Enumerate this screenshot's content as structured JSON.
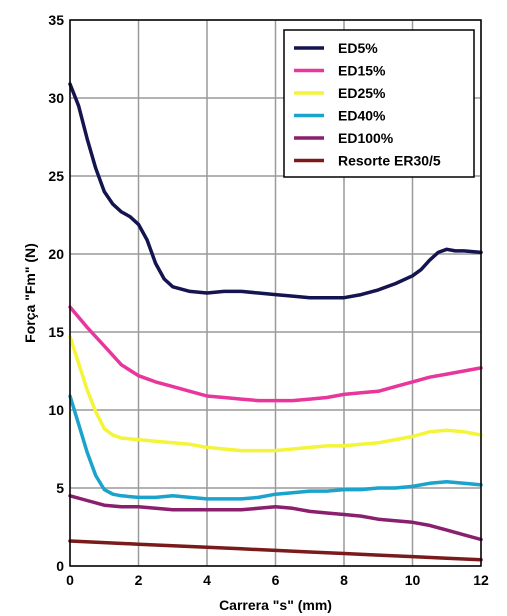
{
  "chart_data": {
    "type": "line",
    "xlabel": "Carrera \"s\" (mm)",
    "ylabel": "Força \"Fm\" (N)",
    "xlim": [
      0,
      12
    ],
    "ylim": [
      0,
      35
    ],
    "x_ticks": [
      "0",
      "2",
      "4",
      "6",
      "8",
      "10",
      "12"
    ],
    "y_ticks": [
      "0",
      "5",
      "10",
      "15",
      "20",
      "25",
      "30",
      "35"
    ],
    "grid": true,
    "legend_position": "top-right",
    "series": [
      {
        "name": "ED5%",
        "color": "#141450",
        "x": [
          0,
          0.25,
          0.5,
          0.75,
          1,
          1.25,
          1.5,
          1.75,
          2,
          2.25,
          2.5,
          2.75,
          3,
          3.5,
          4,
          4.5,
          5,
          5.5,
          6,
          6.5,
          7,
          7.5,
          8,
          8.5,
          9,
          9.5,
          10,
          10.25,
          10.5,
          10.75,
          11,
          11.25,
          11.5,
          12
        ],
        "y": [
          30.9,
          29.5,
          27.4,
          25.5,
          24.0,
          23.2,
          22.7,
          22.4,
          21.9,
          20.9,
          19.4,
          18.4,
          17.9,
          17.6,
          17.5,
          17.6,
          17.6,
          17.5,
          17.4,
          17.3,
          17.2,
          17.2,
          17.2,
          17.4,
          17.7,
          18.1,
          18.6,
          19.0,
          19.6,
          20.1,
          20.3,
          20.2,
          20.2,
          20.1
        ]
      },
      {
        "name": "ED15%",
        "color": "#e8369c",
        "x": [
          0,
          0.5,
          1,
          1.5,
          2,
          2.5,
          3,
          3.5,
          4,
          4.5,
          5,
          5.5,
          6,
          6.5,
          7,
          7.5,
          8,
          8.5,
          9,
          9.5,
          10,
          10.5,
          11,
          11.5,
          12
        ],
        "y": [
          16.6,
          15.3,
          14.1,
          12.9,
          12.2,
          11.8,
          11.5,
          11.2,
          10.9,
          10.8,
          10.7,
          10.6,
          10.6,
          10.6,
          10.7,
          10.8,
          11.0,
          11.1,
          11.2,
          11.5,
          11.8,
          12.1,
          12.3,
          12.5,
          12.7
        ]
      },
      {
        "name": "ED25%",
        "color": "#f4f43a",
        "x": [
          0,
          0.25,
          0.5,
          0.75,
          1,
          1.25,
          1.5,
          2,
          2.5,
          3,
          3.5,
          4,
          4.5,
          5,
          5.5,
          6,
          6.5,
          7,
          7.5,
          8,
          8.5,
          9,
          9.5,
          10,
          10.5,
          11,
          11.5,
          12
        ],
        "y": [
          14.7,
          13.0,
          11.3,
          9.9,
          8.8,
          8.4,
          8.2,
          8.1,
          8.0,
          7.9,
          7.8,
          7.6,
          7.5,
          7.4,
          7.4,
          7.4,
          7.5,
          7.6,
          7.7,
          7.7,
          7.8,
          7.9,
          8.1,
          8.3,
          8.6,
          8.7,
          8.6,
          8.4
        ]
      },
      {
        "name": "ED40%",
        "color": "#1aa3cc",
        "x": [
          0,
          0.25,
          0.5,
          0.75,
          1,
          1.25,
          1.5,
          2,
          2.5,
          3,
          3.5,
          4,
          4.5,
          5,
          5.5,
          6,
          6.5,
          7,
          7.5,
          8,
          8.5,
          9,
          9.5,
          10,
          10.5,
          11,
          11.5,
          12
        ],
        "y": [
          10.9,
          9.1,
          7.3,
          5.8,
          4.9,
          4.6,
          4.5,
          4.4,
          4.4,
          4.5,
          4.4,
          4.3,
          4.3,
          4.3,
          4.4,
          4.6,
          4.7,
          4.8,
          4.8,
          4.9,
          4.9,
          5.0,
          5.0,
          5.1,
          5.3,
          5.4,
          5.3,
          5.2
        ]
      },
      {
        "name": "ED100%",
        "color": "#8a1f6e",
        "x": [
          0,
          0.5,
          1,
          1.5,
          2,
          2.5,
          3,
          3.5,
          4,
          4.5,
          5,
          5.5,
          6,
          6.5,
          7,
          7.5,
          8,
          8.5,
          9,
          9.5,
          10,
          10.5,
          11,
          11.5,
          12
        ],
        "y": [
          4.5,
          4.2,
          3.9,
          3.8,
          3.8,
          3.7,
          3.6,
          3.6,
          3.6,
          3.6,
          3.6,
          3.7,
          3.8,
          3.7,
          3.5,
          3.4,
          3.3,
          3.2,
          3.0,
          2.9,
          2.8,
          2.6,
          2.3,
          2.0,
          1.7
        ]
      },
      {
        "name": "Resorte ER30/5",
        "color": "#7a1a1a",
        "x": [
          0,
          1,
          2,
          3,
          4,
          5,
          6,
          7,
          8,
          9,
          10,
          11,
          12
        ],
        "y": [
          1.6,
          1.5,
          1.4,
          1.3,
          1.2,
          1.1,
          1.0,
          0.9,
          0.8,
          0.7,
          0.6,
          0.5,
          0.4
        ]
      }
    ]
  }
}
